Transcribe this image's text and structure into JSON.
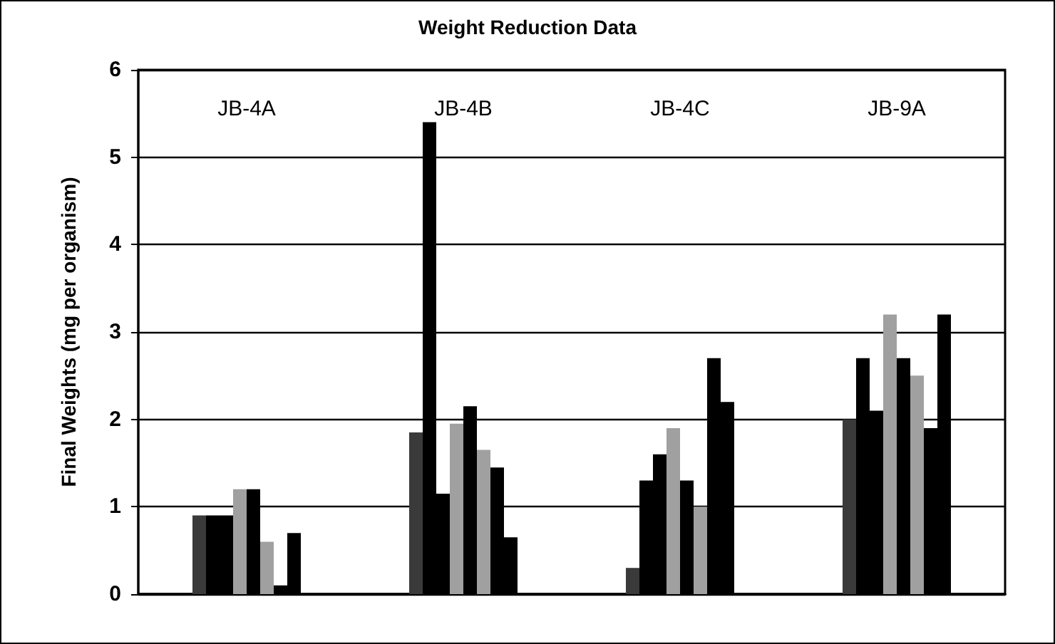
{
  "chart_data": {
    "type": "bar",
    "title": "Weight Reduction Data",
    "ylabel": "Final Weights (mg per organism)",
    "categories": [
      "JB-4A",
      "JB-4B",
      "JB-4C",
      "JB-9A"
    ],
    "series": [
      {
        "color": "#3a3a3a",
        "values": [
          0.9,
          1.85,
          0.3,
          2.0
        ]
      },
      {
        "color": "#000000",
        "values": [
          0.9,
          5.4,
          1.3,
          2.7
        ]
      },
      {
        "color": "#000000",
        "values": [
          0.9,
          1.15,
          1.6,
          2.1
        ]
      },
      {
        "color": "#a0a0a0",
        "values": [
          1.2,
          1.95,
          1.9,
          3.2
        ]
      },
      {
        "color": "#000000",
        "values": [
          1.2,
          2.15,
          1.3,
          2.7
        ]
      },
      {
        "color": "#a0a0a0",
        "values": [
          0.6,
          1.65,
          1.0,
          2.5
        ]
      },
      {
        "color": "#000000",
        "values": [
          0.1,
          1.45,
          2.7,
          1.9
        ]
      },
      {
        "color": "#000000",
        "values": [
          0.7,
          0.65,
          2.2,
          3.2
        ]
      }
    ],
    "ylim": [
      0,
      6
    ],
    "yticks": [
      0,
      1,
      2,
      3,
      4,
      5,
      6
    ],
    "grid": "y"
  }
}
